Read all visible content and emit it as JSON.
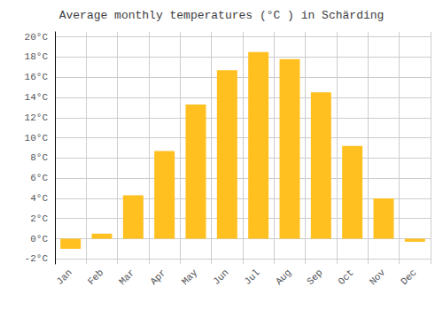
{
  "chart_data": {
    "type": "bar",
    "title": "Average monthly temperatures (°C ) in Schärding",
    "categories": [
      "Jan",
      "Feb",
      "Mar",
      "Apr",
      "May",
      "Jun",
      "Jul",
      "Aug",
      "Sep",
      "Oct",
      "Nov",
      "Dec"
    ],
    "values": [
      -1.0,
      0.5,
      4.3,
      8.7,
      13.3,
      16.7,
      18.5,
      17.8,
      14.5,
      9.2,
      4.0,
      -0.3
    ],
    "color": "#FFC020",
    "ylim": [
      -2.5,
      20.5
    ],
    "yticks": [
      {
        "value": -2,
        "label": "-2°C"
      },
      {
        "value": 0,
        "label": "0°C"
      },
      {
        "value": 2,
        "label": "2°C"
      },
      {
        "value": 4,
        "label": "4°C"
      },
      {
        "value": 6,
        "label": "6°C"
      },
      {
        "value": 8,
        "label": "8°C"
      },
      {
        "value": 10,
        "label": "10°C"
      },
      {
        "value": 12,
        "label": "12°C"
      },
      {
        "value": 14,
        "label": "14°C"
      },
      {
        "value": 16,
        "label": "16°C"
      },
      {
        "value": 18,
        "label": "18°C"
      },
      {
        "value": 20,
        "label": "20°C"
      }
    ],
    "grid": true
  }
}
